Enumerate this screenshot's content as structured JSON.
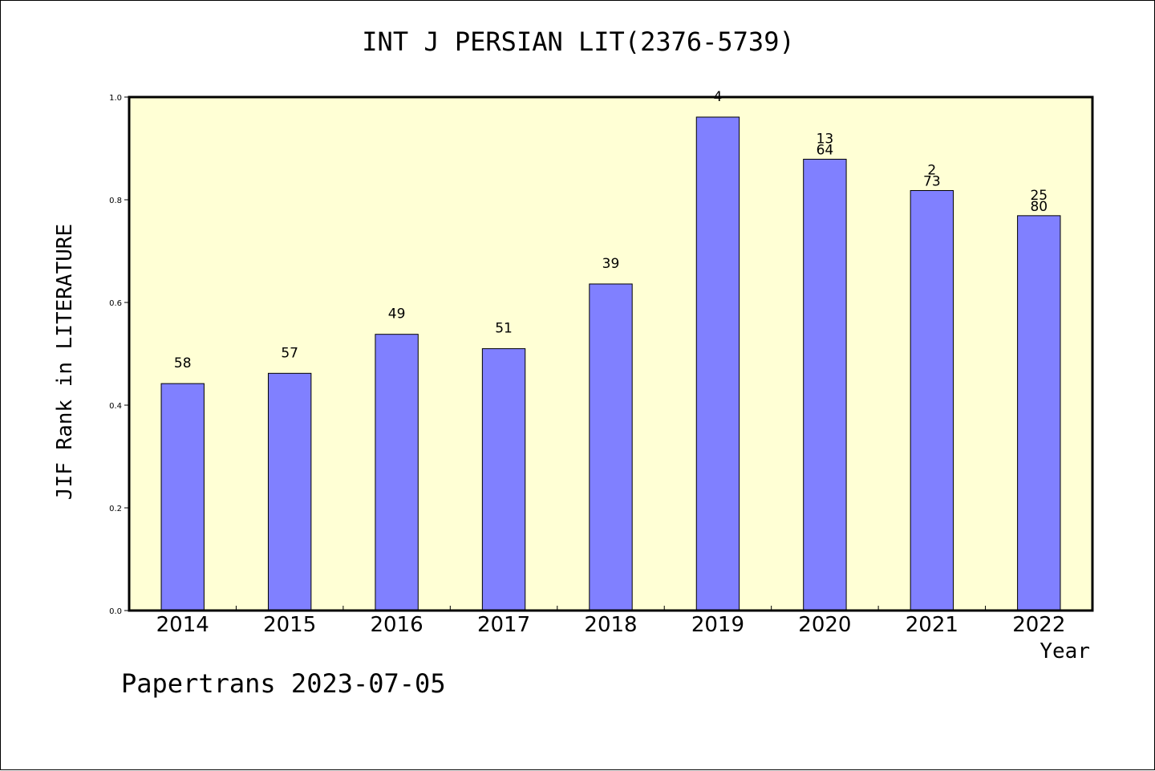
{
  "chart_data": {
    "type": "bar",
    "title": "INT J PERSIAN LIT(2376-5739)",
    "xlabel": "Year",
    "ylabel": "JIF Rank in LITERATURE",
    "ylim": [
      0,
      1.0
    ],
    "yticks": [
      "0.0",
      "0.2",
      "0.4",
      "0.6",
      "0.8",
      "1.0"
    ],
    "grid": false,
    "categories": [
      "2014",
      "2015",
      "2016",
      "2017",
      "2018",
      "2019",
      "2020",
      "2021",
      "2022"
    ],
    "values": [
      0.442,
      0.462,
      0.538,
      0.51,
      0.636,
      0.961,
      0.879,
      0.818,
      0.769
    ],
    "labels": [
      [
        "58"
      ],
      [
        "57"
      ],
      [
        "49"
      ],
      [
        "51"
      ],
      [
        "39"
      ],
      [
        "4"
      ],
      [
        "13",
        "64"
      ],
      [
        "2",
        "73"
      ],
      [
        "25",
        "80"
      ]
    ],
    "colors": {
      "plot_background": "#ffffd5",
      "bar_fill": "#8080ff",
      "bar_stroke": "#000000"
    }
  },
  "footer": "Papertrans 2023-07-05"
}
